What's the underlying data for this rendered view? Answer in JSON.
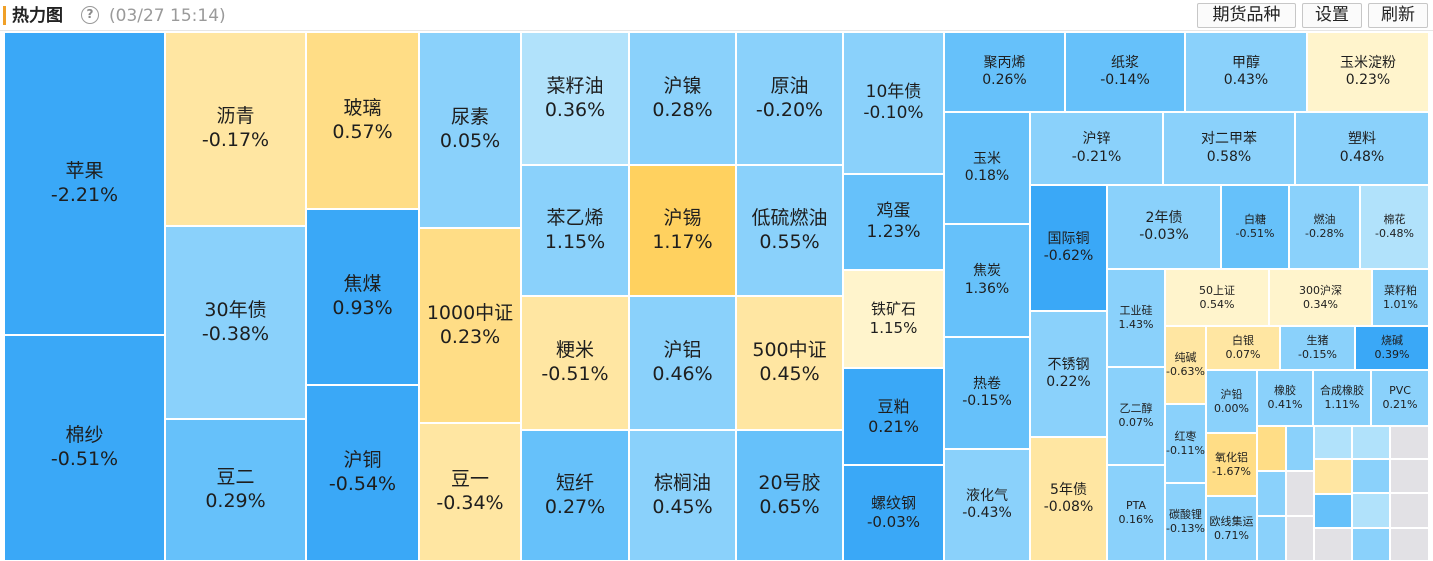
{
  "header": {
    "title": "热力图",
    "help_glyph": "?",
    "timestamp": "(03/27 15:14)",
    "buttons": {
      "varieties": "期货品种",
      "settings": "设置",
      "refresh": "刷新"
    }
  },
  "colors": {
    "c1": "#3aa8f7",
    "c2": "#66c1fa",
    "c3": "#8ad1fb",
    "c4": "#b1e2fb",
    "y0": "#fff4cc",
    "y1": "#ffe6a2",
    "y2": "#ffdd86",
    "y3": "#ffd15f",
    "empty": "#e2e1e5",
    "stub": "#f0f0f0"
  },
  "tiles": [
    {
      "id": "apple",
      "name": "苹果",
      "pct": "-2.21%",
      "tone": "c1"
    },
    {
      "id": "cotton-yarn",
      "name": "棉纱",
      "pct": "-0.51%",
      "tone": "c1"
    },
    {
      "id": "asphalt",
      "name": "沥青",
      "pct": "-0.17%",
      "tone": "y1"
    },
    {
      "id": "bond-30y",
      "name": "30年债",
      "pct": "-0.38%",
      "tone": "c3"
    },
    {
      "id": "soybean-2",
      "name": "豆二",
      "pct": "0.29%",
      "tone": "c2"
    },
    {
      "id": "glass",
      "name": "玻璃",
      "pct": "0.57%",
      "tone": "y2"
    },
    {
      "id": "coking-coal",
      "name": "焦煤",
      "pct": "0.93%",
      "tone": "c1"
    },
    {
      "id": "copper-sh",
      "name": "沪铜",
      "pct": "-0.54%",
      "tone": "c1"
    },
    {
      "id": "urea",
      "name": "尿素",
      "pct": "0.05%",
      "tone": "c3"
    },
    {
      "id": "csi-1000",
      "name": "1000中证",
      "pct": "0.23%",
      "tone": "y2"
    },
    {
      "id": "soybean-1",
      "name": "豆一",
      "pct": "-0.34%",
      "tone": "y1"
    },
    {
      "id": "rapeseed-oil",
      "name": "菜籽油",
      "pct": "0.36%",
      "tone": "c4"
    },
    {
      "id": "styrene",
      "name": "苯乙烯",
      "pct": "1.15%",
      "tone": "c3"
    },
    {
      "id": "japonica",
      "name": "粳米",
      "pct": "-0.51%",
      "tone": "y1"
    },
    {
      "id": "staple-fiber",
      "name": "短纤",
      "pct": "0.27%",
      "tone": "c2"
    },
    {
      "id": "nickel-sh",
      "name": "沪镍",
      "pct": "0.28%",
      "tone": "c3"
    },
    {
      "id": "tin-sh",
      "name": "沪锡",
      "pct": "1.17%",
      "tone": "y3"
    },
    {
      "id": "aluminum-sh",
      "name": "沪铝",
      "pct": "0.46%",
      "tone": "c3"
    },
    {
      "id": "palm-oil",
      "name": "棕榈油",
      "pct": "0.45%",
      "tone": "c3"
    },
    {
      "id": "crude-oil",
      "name": "原油",
      "pct": "-0.20%",
      "tone": "c3"
    },
    {
      "id": "low-sulfur-fuel",
      "name": "低硫燃油",
      "pct": "0.55%",
      "tone": "c3"
    },
    {
      "id": "csi-500",
      "name": "500中证",
      "pct": "0.45%",
      "tone": "y1"
    },
    {
      "id": "rubber-20",
      "name": "20号胶",
      "pct": "0.65%",
      "tone": "c2"
    },
    {
      "id": "bond-10y",
      "name": "10年债",
      "pct": "-0.10%",
      "tone": "c3"
    },
    {
      "id": "egg",
      "name": "鸡蛋",
      "pct": "1.23%",
      "tone": "c2"
    },
    {
      "id": "iron-ore",
      "name": "铁矿石",
      "pct": "1.15%",
      "tone": "y0"
    },
    {
      "id": "soymeal",
      "name": "豆粕",
      "pct": "0.21%",
      "tone": "c1"
    },
    {
      "id": "rebar",
      "name": "螺纹钢",
      "pct": "-0.03%",
      "tone": "c1"
    },
    {
      "id": "polypropylene",
      "name": "聚丙烯",
      "pct": "0.26%",
      "tone": "c2"
    },
    {
      "id": "pulp",
      "name": "纸浆",
      "pct": "-0.14%",
      "tone": "c2"
    },
    {
      "id": "methanol",
      "name": "甲醇",
      "pct": "0.43%",
      "tone": "c3"
    },
    {
      "id": "corn-starch",
      "name": "玉米淀粉",
      "pct": "0.23%",
      "tone": "y0"
    },
    {
      "id": "corn",
      "name": "玉米",
      "pct": "0.18%",
      "tone": "c2"
    },
    {
      "id": "zinc-sh",
      "name": "沪锌",
      "pct": "-0.21%",
      "tone": "c3"
    },
    {
      "id": "px",
      "name": "对二甲苯",
      "pct": "0.58%",
      "tone": "c3"
    },
    {
      "id": "plastic",
      "name": "塑料",
      "pct": "0.48%",
      "tone": "c3"
    },
    {
      "id": "coke",
      "name": "焦炭",
      "pct": "1.36%",
      "tone": "c2"
    },
    {
      "id": "intl-copper",
      "name": "国际铜",
      "pct": "-0.62%",
      "tone": "c1"
    },
    {
      "id": "bond-2y",
      "name": "2年债",
      "pct": "-0.03%",
      "tone": "c3"
    },
    {
      "id": "white-sugar",
      "name": "白糖",
      "pct": "-0.51%",
      "tone": "c2"
    },
    {
      "id": "fuel-oil",
      "name": "燃油",
      "pct": "-0.28%",
      "tone": "c3"
    },
    {
      "id": "cotton",
      "name": "棉花",
      "pct": "-0.48%",
      "tone": "c4"
    },
    {
      "id": "hot-coil",
      "name": "热卷",
      "pct": "-0.15%",
      "tone": "c2"
    },
    {
      "id": "stainless",
      "name": "不锈钢",
      "pct": "0.22%",
      "tone": "c3"
    },
    {
      "id": "industrial-si",
      "name": "工业硅",
      "pct": "1.43%",
      "tone": "c3"
    },
    {
      "id": "sse-50",
      "name": "50上证",
      "pct": "0.54%",
      "tone": "y0"
    },
    {
      "id": "csi-300",
      "name": "300沪深",
      "pct": "0.34%",
      "tone": "y0"
    },
    {
      "id": "rapeseed-meal",
      "name": "菜籽粕",
      "pct": "1.01%",
      "tone": "c3"
    },
    {
      "id": "soda-ash",
      "name": "纯碱",
      "pct": "-0.63%",
      "tone": "y1"
    },
    {
      "id": "silver",
      "name": "白银",
      "pct": "0.07%",
      "tone": "y1"
    },
    {
      "id": "live-hog",
      "name": "生猪",
      "pct": "-0.15%",
      "tone": "c3"
    },
    {
      "id": "caustic-soda",
      "name": "烧碱",
      "pct": "0.39%",
      "tone": "c1"
    },
    {
      "id": "lpg",
      "name": "液化气",
      "pct": "-0.43%",
      "tone": "c3"
    },
    {
      "id": "bond-5y",
      "name": "5年债",
      "pct": "-0.08%",
      "tone": "y1"
    },
    {
      "id": "ethylene-glycol",
      "name": "乙二醇",
      "pct": "0.07%",
      "tone": "c3"
    },
    {
      "id": "pta",
      "name": "PTA",
      "pct": "0.16%",
      "tone": "c3"
    },
    {
      "id": "red-date",
      "name": "红枣",
      "pct": "-0.11%",
      "tone": "c3"
    },
    {
      "id": "lithium-carbonate",
      "name": "碳酸锂",
      "pct": "-0.13%",
      "tone": "c3"
    },
    {
      "id": "lead-sh",
      "name": "沪铅",
      "pct": "0.00%",
      "tone": "c3"
    },
    {
      "id": "alumina",
      "name": "氧化铝",
      "pct": "-1.67%",
      "tone": "y2"
    },
    {
      "id": "container-eu",
      "name": "欧线集运",
      "pct": "0.71%",
      "tone": "c3"
    },
    {
      "id": "rubber",
      "name": "橡胶",
      "pct": "0.41%",
      "tone": "c3"
    },
    {
      "id": "synthetic-rubber",
      "name": "合成橡胶",
      "pct": "1.11%",
      "tone": "c3"
    },
    {
      "id": "pvc",
      "name": "PVC",
      "pct": "0.21%",
      "tone": "c3"
    }
  ],
  "minor_tiles": [
    {
      "id": "m1",
      "tone": "y2"
    },
    {
      "id": "m2",
      "tone": "c3"
    },
    {
      "id": "m3",
      "tone": "c4"
    },
    {
      "id": "m4",
      "tone": "c4"
    },
    {
      "id": "m5",
      "tone": "empty"
    },
    {
      "id": "m6",
      "tone": "empty"
    },
    {
      "id": "m7",
      "tone": "c3"
    },
    {
      "id": "m8",
      "tone": "c2"
    },
    {
      "id": "m9",
      "tone": "y1"
    },
    {
      "id": "m10",
      "tone": "c3"
    },
    {
      "id": "m11",
      "tone": "empty"
    },
    {
      "id": "m12",
      "tone": "empty"
    },
    {
      "id": "m13",
      "tone": "c3"
    },
    {
      "id": "m14",
      "tone": "empty"
    },
    {
      "id": "m15",
      "tone": "c2"
    },
    {
      "id": "m16",
      "tone": "c4"
    },
    {
      "id": "m17",
      "tone": "empty"
    },
    {
      "id": "m18",
      "tone": "empty"
    },
    {
      "id": "m19",
      "tone": "c3"
    },
    {
      "id": "m20",
      "tone": "empty"
    },
    {
      "id": "m21",
      "tone": "empty"
    },
    {
      "id": "m22",
      "tone": "c4"
    },
    {
      "id": "m23",
      "tone": "empty"
    },
    {
      "id": "m24",
      "tone": "c4"
    },
    {
      "id": "m25",
      "tone": "c4"
    },
    {
      "id": "m26",
      "tone": "empty"
    },
    {
      "id": "m27",
      "tone": "stub"
    },
    {
      "id": "m28",
      "tone": "stub"
    }
  ]
}
